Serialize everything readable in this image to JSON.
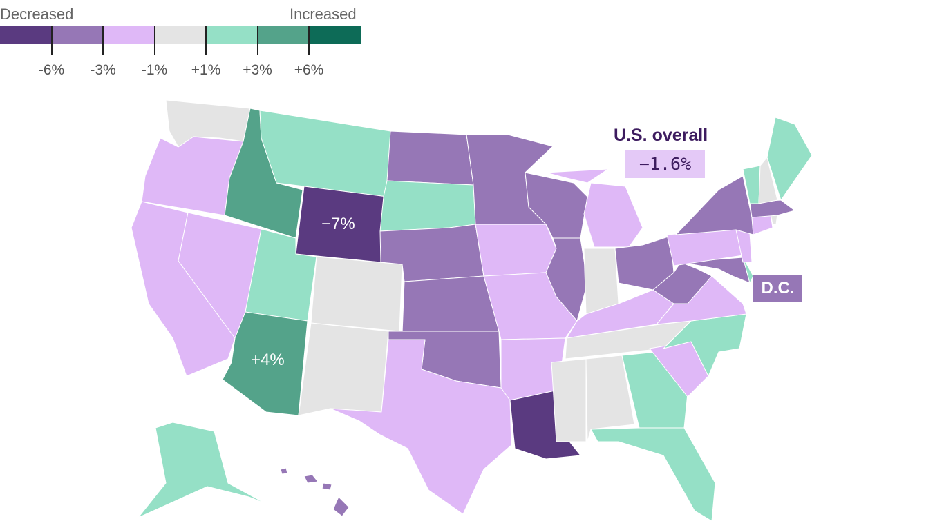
{
  "legend": {
    "decreased_label": "Decreased",
    "increased_label": "Increased",
    "colors": [
      "#5a3a80",
      "#9677b6",
      "#dfb8f7",
      "#e4e4e4",
      "#95e0c6",
      "#54a38a",
      "#0d6b57"
    ],
    "thresholds": [
      "-6%",
      "-3%",
      "-1%",
      "+1%",
      "+3%",
      "+6%"
    ]
  },
  "map": {
    "state_bins": {
      "WA": 3,
      "OR": 2,
      "CA": 2,
      "NV": 2,
      "ID": 5,
      "MT": 4,
      "WY": 0,
      "UT": 4,
      "AZ": 5,
      "CO": 3,
      "NM": 3,
      "ND": 1,
      "SD": 4,
      "NE": 1,
      "KS": 1,
      "OK": 1,
      "TX": 2,
      "MN": 1,
      "IA": 2,
      "MO": 2,
      "AR": 2,
      "LA": 0,
      "WI": 1,
      "IL": 1,
      "MI": 2,
      "IN": 3,
      "OH": 1,
      "KY": 2,
      "TN": 3,
      "MS": 3,
      "AL": 3,
      "GA": 4,
      "FL": 4,
      "SC": 2,
      "NC": 4,
      "VA": 2,
      "WV": 1,
      "MD": 1,
      "DE": 4,
      "PA": 2,
      "NJ": 2,
      "NY": 1,
      "CT": 2,
      "RI": 3,
      "MA": 1,
      "VT": 4,
      "NH": 3,
      "ME": 4,
      "AK": 4,
      "HI": 1
    },
    "wyoming_label": "−7%",
    "arizona_label": "+4%"
  },
  "us_overall": {
    "title": "U.S. overall",
    "value": "−1.6%"
  },
  "dc": {
    "label": "D.C.",
    "bin": 1
  }
}
